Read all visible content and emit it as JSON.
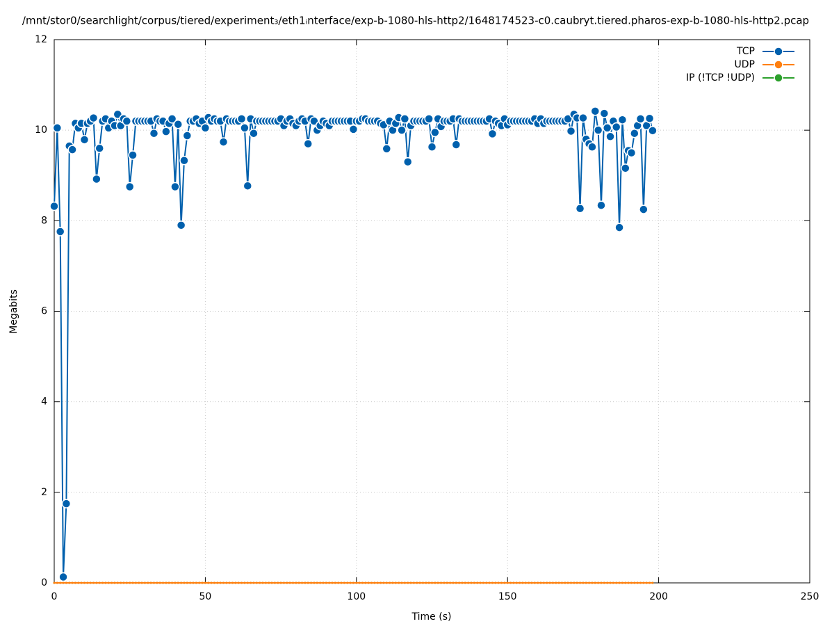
{
  "chart_data": {
    "type": "line",
    "title": "/mnt/stor0/searchlight/corpus/tiered/experiment₃/eth1ᵢnterface/exp-b-1080-hls-http2/1648174523-c0.caubryt.tiered.pharos-exp-b-1080-hls-http2.pcap",
    "xlabel": "Time (s)",
    "ylabel": "Megabits",
    "xlim": [
      0,
      250
    ],
    "xticks": [
      0,
      50,
      100,
      150,
      200,
      250
    ],
    "ylim": [
      0,
      12
    ],
    "yticks": [
      0,
      2,
      4,
      6,
      8,
      10,
      12
    ],
    "grid": true,
    "legend": "upper right",
    "x": [
      0,
      1,
      2,
      3,
      4,
      5,
      6,
      7,
      8,
      9,
      10,
      11,
      12,
      13,
      14,
      15,
      16,
      17,
      18,
      19,
      20,
      21,
      22,
      23,
      24,
      25,
      26,
      27,
      28,
      29,
      30,
      31,
      32,
      33,
      34,
      35,
      36,
      37,
      38,
      39,
      40,
      41,
      42,
      43,
      44,
      45,
      46,
      47,
      48,
      49,
      50,
      51,
      52,
      53,
      54,
      55,
      56,
      57,
      58,
      59,
      60,
      61,
      62,
      63,
      64,
      65,
      66,
      67,
      68,
      69,
      70,
      71,
      72,
      73,
      74,
      75,
      76,
      77,
      78,
      79,
      80,
      81,
      82,
      83,
      84,
      85,
      86,
      87,
      88,
      89,
      90,
      91,
      92,
      93,
      94,
      95,
      96,
      97,
      98,
      99,
      100,
      101,
      102,
      103,
      104,
      105,
      106,
      107,
      108,
      109,
      110,
      111,
      112,
      113,
      114,
      115,
      116,
      117,
      118,
      119,
      120,
      121,
      122,
      123,
      124,
      125,
      126,
      127,
      128,
      129,
      130,
      131,
      132,
      133,
      134,
      135,
      136,
      137,
      138,
      139,
      140,
      141,
      142,
      143,
      144,
      145,
      146,
      147,
      148,
      149,
      150,
      151,
      152,
      153,
      154,
      155,
      156,
      157,
      158,
      159,
      160,
      161,
      162,
      163,
      164,
      165,
      166,
      167,
      168,
      169,
      170,
      171,
      172,
      173,
      174,
      175,
      176,
      177,
      178,
      179,
      180,
      181,
      182,
      183,
      184,
      185,
      186,
      187,
      188,
      189,
      190,
      191,
      192,
      193,
      194,
      195,
      196,
      197,
      198
    ],
    "series": [
      {
        "name": "TCP",
        "color": "#0060ad",
        "values": [
          8.32,
          10.05,
          7.76,
          0.13,
          1.75,
          9.65,
          9.57,
          10.15,
          10.05,
          10.15,
          9.79,
          10.15,
          10.2,
          10.27,
          8.92,
          9.6,
          10.2,
          10.25,
          10.05,
          10.2,
          10.1,
          10.35,
          10.1,
          10.25,
          10.2,
          8.75,
          9.45,
          10.2,
          10.2,
          10.2,
          10.2,
          10.2,
          10.2,
          9.93,
          10.25,
          10.2,
          10.2,
          9.97,
          10.15,
          10.25,
          8.75,
          10.13,
          7.9,
          9.33,
          9.88,
          10.2,
          10.2,
          10.25,
          10.15,
          10.2,
          10.05,
          10.28,
          10.2,
          10.25,
          10.2,
          10.2,
          9.74,
          10.25,
          10.2,
          10.2,
          10.2,
          10.2,
          10.25,
          10.05,
          8.77,
          10.25,
          9.93,
          10.2,
          10.2,
          10.2,
          10.2,
          10.2,
          10.2,
          10.2,
          10.2,
          10.25,
          10.1,
          10.2,
          10.25,
          10.15,
          10.1,
          10.2,
          10.25,
          10.2,
          9.7,
          10.25,
          10.2,
          10.0,
          10.1,
          10.2,
          10.15,
          10.1,
          10.2,
          10.2,
          10.2,
          10.2,
          10.2,
          10.2,
          10.2,
          10.02,
          10.2,
          10.2,
          10.25,
          10.25,
          10.2,
          10.2,
          10.2,
          10.2,
          10.15,
          10.12,
          9.59,
          10.2,
          10.0,
          10.15,
          10.28,
          10.0,
          10.25,
          9.3,
          10.1,
          10.2,
          10.2,
          10.2,
          10.2,
          10.2,
          10.25,
          9.63,
          9.95,
          10.25,
          10.08,
          10.2,
          10.2,
          10.2,
          10.25,
          9.68,
          10.25,
          10.2,
          10.2,
          10.2,
          10.2,
          10.2,
          10.2,
          10.2,
          10.2,
          10.2,
          10.25,
          9.92,
          10.2,
          10.15,
          10.1,
          10.25,
          10.12,
          10.2,
          10.2,
          10.2,
          10.2,
          10.2,
          10.2,
          10.2,
          10.2,
          10.25,
          10.15,
          10.25,
          10.15,
          10.2,
          10.2,
          10.2,
          10.2,
          10.2,
          10.2,
          10.2,
          10.25,
          9.98,
          10.35,
          10.27,
          8.27,
          10.27,
          9.8,
          9.7,
          9.63,
          10.42,
          10.0,
          8.34,
          10.37,
          10.05,
          9.86,
          10.2,
          10.07,
          7.85,
          10.23,
          9.16,
          9.55,
          9.5,
          9.93,
          10.1,
          10.25,
          8.25,
          10.1,
          10.26,
          9.99
        ]
      },
      {
        "name": "UDP",
        "color": "#ff7f0e",
        "values": [
          0,
          0,
          0,
          0,
          0,
          0,
          0,
          0,
          0,
          0,
          0,
          0,
          0,
          0,
          0,
          0,
          0,
          0,
          0,
          0,
          0,
          0,
          0,
          0,
          0,
          0,
          0,
          0,
          0,
          0,
          0,
          0,
          0,
          0,
          0,
          0,
          0,
          0,
          0,
          0,
          0,
          0,
          0,
          0,
          0,
          0,
          0,
          0,
          0,
          0,
          0,
          0,
          0,
          0,
          0,
          0,
          0,
          0,
          0,
          0,
          0,
          0,
          0,
          0,
          0,
          0,
          0,
          0,
          0,
          0,
          0,
          0,
          0,
          0,
          0,
          0,
          0,
          0,
          0,
          0,
          0,
          0,
          0,
          0,
          0,
          0,
          0,
          0,
          0,
          0,
          0,
          0,
          0,
          0,
          0,
          0,
          0,
          0,
          0,
          0,
          0,
          0,
          0,
          0,
          0,
          0,
          0,
          0,
          0,
          0,
          0,
          0,
          0,
          0,
          0,
          0,
          0,
          0,
          0,
          0,
          0,
          0,
          0,
          0,
          0,
          0,
          0,
          0,
          0,
          0,
          0,
          0,
          0,
          0,
          0,
          0,
          0,
          0,
          0,
          0,
          0,
          0,
          0,
          0,
          0,
          0,
          0,
          0,
          0,
          0,
          0,
          0,
          0,
          0,
          0,
          0,
          0,
          0,
          0,
          0,
          0,
          0,
          0,
          0,
          0,
          0,
          0,
          0,
          0,
          0,
          0,
          0,
          0,
          0,
          0,
          0,
          0,
          0,
          0,
          0,
          0,
          0,
          0,
          0,
          0,
          0,
          0,
          0,
          0,
          0,
          0,
          0,
          0,
          0,
          0,
          0,
          0,
          0,
          0
        ]
      },
      {
        "name": "IP (!TCP  !UDP)",
        "color": "#2ca02c",
        "values": [
          0,
          0,
          0,
          0,
          0,
          0,
          0,
          0,
          0,
          0,
          0,
          0,
          0,
          0,
          0,
          0,
          0,
          0,
          0,
          0,
          0,
          0,
          0,
          0,
          0,
          0,
          0,
          0,
          0,
          0,
          0,
          0,
          0,
          0,
          0,
          0,
          0,
          0,
          0,
          0,
          0,
          0,
          0,
          0,
          0,
          0,
          0,
          0,
          0,
          0,
          0,
          0,
          0,
          0,
          0,
          0,
          0,
          0,
          0,
          0,
          0,
          0,
          0,
          0,
          0,
          0,
          0,
          0,
          0,
          0,
          0,
          0,
          0,
          0,
          0,
          0,
          0,
          0,
          0,
          0,
          0,
          0,
          0,
          0,
          0,
          0,
          0,
          0,
          0,
          0,
          0,
          0,
          0,
          0,
          0,
          0,
          0,
          0,
          0,
          0,
          0,
          0,
          0,
          0,
          0,
          0,
          0,
          0,
          0,
          0,
          0,
          0,
          0,
          0,
          0,
          0,
          0,
          0,
          0,
          0,
          0,
          0,
          0,
          0,
          0,
          0,
          0,
          0,
          0,
          0,
          0,
          0,
          0,
          0,
          0,
          0,
          0,
          0,
          0,
          0,
          0,
          0,
          0,
          0,
          0,
          0,
          0,
          0,
          0,
          0,
          0,
          0,
          0,
          0,
          0,
          0,
          0,
          0,
          0,
          0,
          0,
          0,
          0,
          0,
          0,
          0,
          0,
          0,
          0,
          0,
          0,
          0,
          0,
          0,
          0,
          0,
          0,
          0,
          0,
          0,
          0,
          0,
          0,
          0,
          0,
          0,
          0,
          0,
          0,
          0,
          0,
          0,
          0,
          0,
          0,
          0,
          0,
          0,
          0
        ]
      }
    ]
  }
}
